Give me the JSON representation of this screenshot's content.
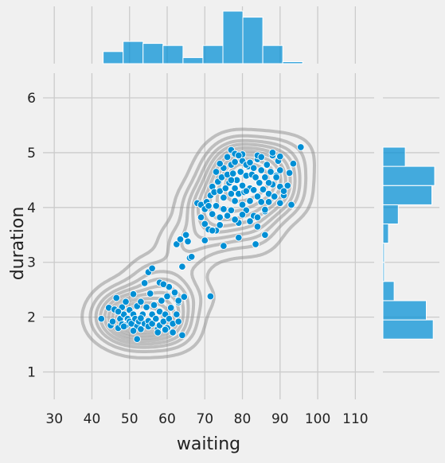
{
  "chart_data": {
    "type": "scatter",
    "title": "",
    "xlabel": "waiting",
    "ylabel": "duration",
    "xlim": [
      27,
      115
    ],
    "ylim": [
      0.5,
      6.45
    ],
    "xticks": [
      30,
      40,
      50,
      60,
      70,
      80,
      90,
      100,
      110
    ],
    "yticks": [
      1,
      2,
      3,
      4,
      5,
      6
    ],
    "grid": true,
    "colors": {
      "background": "#f0f0f0",
      "grid": "#cbcbcb",
      "point": "#008fd5",
      "hist": "#008fd5",
      "contour": "#8c8c8c"
    },
    "series": [
      {
        "marker": "circle",
        "points": [
          [
            42.5,
            1.97
          ],
          [
            44.5,
            2.17
          ],
          [
            45,
            1.85
          ],
          [
            45.5,
            1.92
          ],
          [
            46,
            2.14
          ],
          [
            46.5,
            2.35
          ],
          [
            47,
            1.8
          ],
          [
            47.5,
            1.97
          ],
          [
            48,
            2.18
          ],
          [
            48,
            1.87
          ],
          [
            48.5,
            2.05
          ],
          [
            49,
            1.85
          ],
          [
            49,
            2.28
          ],
          [
            49.5,
            1.97
          ],
          [
            50,
            1.92
          ],
          [
            50,
            2.13
          ],
          [
            50.5,
            1.88
          ],
          [
            51,
            2.05
          ],
          [
            51,
            2.42
          ],
          [
            51.5,
            1.97
          ],
          [
            52,
            1.83
          ],
          [
            52,
            2.2
          ],
          [
            52.5,
            1.92
          ],
          [
            53,
            2.28
          ],
          [
            53,
            1.78
          ],
          [
            53.5,
            2.05
          ],
          [
            54,
            1.88
          ],
          [
            54,
            2.62
          ],
          [
            54.5,
            2.18
          ],
          [
            55,
            1.93
          ],
          [
            55,
            1.83
          ],
          [
            55.5,
            2.43
          ],
          [
            56,
            2.05
          ],
          [
            56,
            1.88
          ],
          [
            56.5,
            2.22
          ],
          [
            57,
            1.97
          ],
          [
            57.5,
            1.78
          ],
          [
            58,
            2.1
          ],
          [
            58,
            1.85
          ],
          [
            58.5,
            2.3
          ],
          [
            59,
            1.92
          ],
          [
            59.5,
            2.05
          ],
          [
            60,
            2.38
          ],
          [
            60,
            1.8
          ],
          [
            60.5,
            1.97
          ],
          [
            61,
            2.17
          ],
          [
            61.5,
            1.88
          ],
          [
            62,
            2.43
          ],
          [
            62.5,
            2.05
          ],
          [
            63,
            1.92
          ],
          [
            63,
            2.27
          ],
          [
            64,
            1.67
          ],
          [
            64.5,
            2.37
          ],
          [
            51,
            1.75
          ],
          [
            52,
            1.6
          ],
          [
            55,
            2.82
          ],
          [
            56,
            2.89
          ],
          [
            58,
            2.63
          ],
          [
            60.5,
            2.55
          ],
          [
            62,
            2.45
          ],
          [
            64,
            2.92
          ],
          [
            66,
            3.08
          ],
          [
            57.5,
            1.72
          ],
          [
            59.5,
            1.77
          ],
          [
            53,
            1.98
          ],
          [
            48.5,
            1.83
          ],
          [
            47,
            2.1
          ],
          [
            59,
            2.6
          ],
          [
            63,
            2.3
          ],
          [
            61.5,
            1.72
          ],
          [
            62.5,
            3.33
          ],
          [
            63.5,
            3.42
          ],
          [
            65,
            3.5
          ],
          [
            65.5,
            3.38
          ],
          [
            66.5,
            3.1
          ],
          [
            68,
            4.08
          ],
          [
            69,
            4.05
          ],
          [
            69,
            3.82
          ],
          [
            70,
            3.7
          ],
          [
            70,
            3.97
          ],
          [
            70.5,
            4.1
          ],
          [
            71,
            3.6
          ],
          [
            71,
            4.03
          ],
          [
            71.5,
            4.22
          ],
          [
            72,
            3.88
          ],
          [
            72,
            4.38
          ],
          [
            72.5,
            4.28
          ],
          [
            73,
            4.03
          ],
          [
            73,
            3.58
          ],
          [
            73.5,
            4.47
          ],
          [
            74,
            4.3
          ],
          [
            74,
            3.82
          ],
          [
            74.5,
            4.55
          ],
          [
            75,
            4.18
          ],
          [
            75,
            4.72
          ],
          [
            75,
            3.97
          ],
          [
            75.5,
            4.35
          ],
          [
            76,
            4.6
          ],
          [
            76,
            3.85
          ],
          [
            76.5,
            4.45
          ],
          [
            77,
            4.25
          ],
          [
            77,
            4.78
          ],
          [
            77,
            3.95
          ],
          [
            77.5,
            4.62
          ],
          [
            78,
            4.35
          ],
          [
            78,
            4.12
          ],
          [
            78,
            4.83
          ],
          [
            78.5,
            4.5
          ],
          [
            79,
            4.25
          ],
          [
            79,
            3.72
          ],
          [
            79.5,
            4.65
          ],
          [
            80,
            4.4
          ],
          [
            80,
            4.05
          ],
          [
            80,
            4.85
          ],
          [
            80.5,
            4.28
          ],
          [
            81,
            4.58
          ],
          [
            81,
            3.95
          ],
          [
            81.5,
            4.75
          ],
          [
            82,
            4.35
          ],
          [
            82,
            4.12
          ],
          [
            82.5,
            4.6
          ],
          [
            83,
            4.32
          ],
          [
            83,
            3.85
          ],
          [
            83.5,
            4.55
          ],
          [
            84,
            4.2
          ],
          [
            84,
            4.88
          ],
          [
            84.5,
            4.45
          ],
          [
            85,
            4.1
          ],
          [
            85,
            4.68
          ],
          [
            85.5,
            4.33
          ],
          [
            86,
            4.55
          ],
          [
            86,
            3.93
          ],
          [
            86.5,
            4.78
          ],
          [
            87,
            4.25
          ],
          [
            87.5,
            4.65
          ],
          [
            88,
            4.42
          ],
          [
            88,
            4.95
          ],
          [
            88.5,
            4.2
          ],
          [
            89,
            4.58
          ],
          [
            89.5,
            4.85
          ],
          [
            90,
            4.38
          ],
          [
            90,
            4.68
          ],
          [
            91,
            4.22
          ],
          [
            92,
            4.4
          ],
          [
            92.5,
            4.63
          ],
          [
            93,
            4.05
          ],
          [
            93.5,
            4.8
          ],
          [
            95.5,
            5.1
          ],
          [
            77,
            5.05
          ],
          [
            78,
            4.98
          ],
          [
            81,
            4.78
          ],
          [
            80,
            4.97
          ],
          [
            82,
            4.82
          ],
          [
            84,
            4.95
          ],
          [
            88,
            5.0
          ],
          [
            90,
            4.93
          ],
          [
            79,
            3.45
          ],
          [
            83.5,
            3.33
          ],
          [
            86,
            3.5
          ],
          [
            76,
            3.85
          ],
          [
            72,
            3.58
          ],
          [
            74,
            3.68
          ],
          [
            78,
            3.78
          ],
          [
            80,
            3.87
          ],
          [
            82,
            3.75
          ],
          [
            84,
            3.82
          ],
          [
            86,
            3.96
          ],
          [
            87,
            4.1
          ],
          [
            90,
            4.08
          ],
          [
            91,
            4.3
          ],
          [
            73,
            4.65
          ],
          [
            74,
            4.8
          ],
          [
            76,
            4.92
          ],
          [
            77,
            4.5
          ],
          [
            79,
            4.95
          ],
          [
            81,
            4.3
          ],
          [
            83,
            4.72
          ],
          [
            85,
            4.92
          ],
          [
            87,
            4.45
          ],
          [
            89,
            4.55
          ],
          [
            71.5,
            2.38
          ],
          [
            70,
            3.4
          ],
          [
            75,
            3.3
          ],
          [
            84,
            3.65
          ]
        ]
      }
    ],
    "marginal_top": {
      "xlabel": "waiting",
      "bin_edges": [
        43,
        48.3,
        53.6,
        58.9,
        64.2,
        69.5,
        74.8,
        80.1,
        85.4,
        90.7,
        96
      ],
      "counts": [
        6,
        11,
        10,
        9,
        3,
        9,
        26,
        23,
        9,
        1
      ]
    },
    "marginal_right": {
      "ylabel": "duration",
      "bin_edges": [
        1.6,
        1.95,
        2.3,
        2.65,
        3.0,
        3.35,
        3.7,
        4.05,
        4.4,
        4.75,
        5.1
      ],
      "counts": [
        36,
        31,
        8,
        1,
        1,
        4,
        11,
        35,
        37,
        16
      ]
    }
  }
}
